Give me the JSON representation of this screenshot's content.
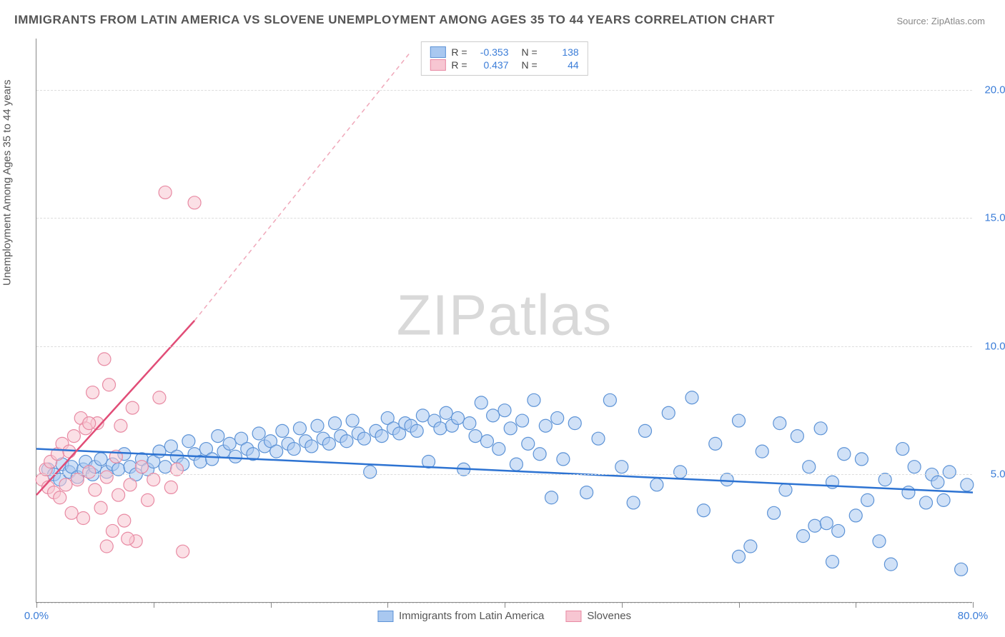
{
  "title": "IMMIGRANTS FROM LATIN AMERICA VS SLOVENE UNEMPLOYMENT AMONG AGES 35 TO 44 YEARS CORRELATION CHART",
  "source": "Source: ZipAtlas.com",
  "y_axis_label": "Unemployment Among Ages 35 to 44 years",
  "watermark_part1": "ZIP",
  "watermark_part2": "atlas",
  "chart": {
    "type": "scatter",
    "xlim": [
      0,
      80
    ],
    "ylim": [
      0,
      22
    ],
    "x_ticks": [
      0,
      10,
      20,
      30,
      40,
      50,
      60,
      70,
      80
    ],
    "x_tick_labels": {
      "0": "0.0%",
      "80": "80.0%"
    },
    "y_ticks": [
      0,
      5,
      10,
      15,
      20
    ],
    "y_tick_labels": {
      "5": "5.0%",
      "10": "10.0%",
      "15": "15.0%",
      "20": "20.0%"
    },
    "grid_lines_y": [
      0,
      5,
      10,
      15,
      20
    ],
    "grid_color": "#dddddd",
    "background": "#ffffff",
    "axis_color": "#888888",
    "label_color": "#3b7dd8",
    "title_color": "#555555",
    "title_fontsize": 17,
    "label_fontsize": 15,
    "marker_radius": 9,
    "marker_opacity": 0.55,
    "marker_stroke_width": 1.2,
    "series": [
      {
        "name": "Immigrants from Latin America",
        "fill": "#a9c8f0",
        "stroke": "#5d93d6",
        "R": "-0.353",
        "N": "138",
        "trend": {
          "x1": 0,
          "y1": 6.0,
          "x2": 80,
          "y2": 4.3,
          "color": "#2d73d2",
          "width": 2.5,
          "dash": "none"
        },
        "points": [
          [
            1.0,
            5.2
          ],
          [
            1.5,
            5.0
          ],
          [
            2.0,
            4.8
          ],
          [
            2.2,
            5.4
          ],
          [
            2.8,
            5.1
          ],
          [
            3.0,
            5.3
          ],
          [
            3.5,
            4.9
          ],
          [
            4.0,
            5.2
          ],
          [
            4.2,
            5.5
          ],
          [
            4.8,
            5.0
          ],
          [
            5.0,
            5.3
          ],
          [
            5.5,
            5.6
          ],
          [
            6.0,
            5.1
          ],
          [
            6.5,
            5.4
          ],
          [
            7.0,
            5.2
          ],
          [
            7.5,
            5.8
          ],
          [
            8.0,
            5.3
          ],
          [
            8.5,
            5.0
          ],
          [
            9.0,
            5.6
          ],
          [
            9.5,
            5.2
          ],
          [
            10.0,
            5.5
          ],
          [
            10.5,
            5.9
          ],
          [
            11.0,
            5.3
          ],
          [
            11.5,
            6.1
          ],
          [
            12.0,
            5.7
          ],
          [
            12.5,
            5.4
          ],
          [
            13.0,
            6.3
          ],
          [
            13.5,
            5.8
          ],
          [
            14.0,
            5.5
          ],
          [
            14.5,
            6.0
          ],
          [
            15.0,
            5.6
          ],
          [
            15.5,
            6.5
          ],
          [
            16.0,
            5.9
          ],
          [
            16.5,
            6.2
          ],
          [
            17.0,
            5.7
          ],
          [
            17.5,
            6.4
          ],
          [
            18.0,
            6.0
          ],
          [
            18.5,
            5.8
          ],
          [
            19.0,
            6.6
          ],
          [
            19.5,
            6.1
          ],
          [
            20.0,
            6.3
          ],
          [
            20.5,
            5.9
          ],
          [
            21.0,
            6.7
          ],
          [
            21.5,
            6.2
          ],
          [
            22.0,
            6.0
          ],
          [
            22.5,
            6.8
          ],
          [
            23.0,
            6.3
          ],
          [
            23.5,
            6.1
          ],
          [
            24.0,
            6.9
          ],
          [
            24.5,
            6.4
          ],
          [
            25.0,
            6.2
          ],
          [
            25.5,
            7.0
          ],
          [
            26.0,
            6.5
          ],
          [
            26.5,
            6.3
          ],
          [
            27.0,
            7.1
          ],
          [
            27.5,
            6.6
          ],
          [
            28.0,
            6.4
          ],
          [
            28.5,
            5.1
          ],
          [
            29.0,
            6.7
          ],
          [
            29.5,
            6.5
          ],
          [
            30.0,
            7.2
          ],
          [
            30.5,
            6.8
          ],
          [
            31.0,
            6.6
          ],
          [
            31.5,
            7.0
          ],
          [
            32.0,
            6.9
          ],
          [
            32.5,
            6.7
          ],
          [
            33.0,
            7.3
          ],
          [
            33.5,
            5.5
          ],
          [
            34.0,
            7.1
          ],
          [
            34.5,
            6.8
          ],
          [
            35.0,
            7.4
          ],
          [
            35.5,
            6.9
          ],
          [
            36.0,
            7.2
          ],
          [
            36.5,
            5.2
          ],
          [
            37.0,
            7.0
          ],
          [
            37.5,
            6.5
          ],
          [
            38.0,
            7.8
          ],
          [
            38.5,
            6.3
          ],
          [
            39.0,
            7.3
          ],
          [
            39.5,
            6.0
          ],
          [
            40.0,
            7.5
          ],
          [
            40.5,
            6.8
          ],
          [
            41.0,
            5.4
          ],
          [
            41.5,
            7.1
          ],
          [
            42.0,
            6.2
          ],
          [
            42.5,
            7.9
          ],
          [
            43.0,
            5.8
          ],
          [
            43.5,
            6.9
          ],
          [
            44.0,
            4.1
          ],
          [
            44.5,
            7.2
          ],
          [
            45.0,
            5.6
          ],
          [
            46.0,
            7.0
          ],
          [
            47.0,
            4.3
          ],
          [
            48.0,
            6.4
          ],
          [
            49.0,
            7.9
          ],
          [
            50.0,
            5.3
          ],
          [
            51.0,
            3.9
          ],
          [
            52.0,
            6.7
          ],
          [
            53.0,
            4.6
          ],
          [
            54.0,
            7.4
          ],
          [
            55.0,
            5.1
          ],
          [
            56.0,
            8.0
          ],
          [
            57.0,
            3.6
          ],
          [
            58.0,
            6.2
          ],
          [
            59.0,
            4.8
          ],
          [
            60.0,
            7.1
          ],
          [
            61.0,
            2.2
          ],
          [
            62.0,
            5.9
          ],
          [
            63.0,
            3.5
          ],
          [
            63.5,
            7.0
          ],
          [
            64.0,
            4.4
          ],
          [
            65.0,
            6.5
          ],
          [
            65.5,
            2.6
          ],
          [
            66.0,
            5.3
          ],
          [
            66.5,
            3.0
          ],
          [
            67.0,
            6.8
          ],
          [
            67.5,
            3.1
          ],
          [
            68.0,
            4.7
          ],
          [
            68.5,
            2.8
          ],
          [
            69.0,
            5.8
          ],
          [
            70.0,
            3.4
          ],
          [
            70.5,
            5.6
          ],
          [
            71.0,
            4.0
          ],
          [
            72.0,
            2.4
          ],
          [
            72.5,
            4.8
          ],
          [
            73.0,
            1.5
          ],
          [
            74.0,
            6.0
          ],
          [
            74.5,
            4.3
          ],
          [
            75.0,
            5.3
          ],
          [
            76.0,
            3.9
          ],
          [
            76.5,
            5.0
          ],
          [
            77.0,
            4.7
          ],
          [
            77.5,
            4.0
          ],
          [
            78.0,
            5.1
          ],
          [
            79.0,
            1.3
          ],
          [
            79.5,
            4.6
          ],
          [
            68.0,
            1.6
          ],
          [
            60.0,
            1.8
          ]
        ]
      },
      {
        "name": "Slovenes",
        "fill": "#f7c6d2",
        "stroke": "#e88aa3",
        "R": "0.437",
        "N": "44",
        "trend": {
          "x1": 0,
          "y1": 4.2,
          "x2": 13.5,
          "y2": 11.0,
          "color": "#e14d77",
          "width": 2.5,
          "dash": "none"
        },
        "trend_dash": {
          "x1": 13.5,
          "y1": 11.0,
          "x2": 32.0,
          "y2": 21.5,
          "color": "#f0a8ba",
          "width": 1.5,
          "dash": "6,5"
        },
        "points": [
          [
            0.5,
            4.8
          ],
          [
            0.8,
            5.2
          ],
          [
            1.0,
            4.5
          ],
          [
            1.2,
            5.5
          ],
          [
            1.5,
            4.3
          ],
          [
            1.8,
            5.8
          ],
          [
            2.0,
            4.1
          ],
          [
            2.2,
            6.2
          ],
          [
            2.5,
            4.6
          ],
          [
            2.8,
            5.9
          ],
          [
            3.0,
            3.5
          ],
          [
            3.2,
            6.5
          ],
          [
            3.5,
            4.8
          ],
          [
            3.8,
            7.2
          ],
          [
            4.0,
            3.3
          ],
          [
            4.2,
            6.8
          ],
          [
            4.5,
            5.1
          ],
          [
            4.8,
            8.2
          ],
          [
            5.0,
            4.4
          ],
          [
            5.2,
            7.0
          ],
          [
            5.5,
            3.7
          ],
          [
            5.8,
            9.5
          ],
          [
            6.0,
            4.9
          ],
          [
            6.2,
            8.5
          ],
          [
            6.5,
            2.8
          ],
          [
            6.8,
            5.7
          ],
          [
            7.0,
            4.2
          ],
          [
            7.2,
            6.9
          ],
          [
            7.5,
            3.2
          ],
          [
            8.0,
            4.6
          ],
          [
            8.2,
            7.6
          ],
          [
            8.5,
            2.4
          ],
          [
            9.0,
            5.3
          ],
          [
            9.5,
            4.0
          ],
          [
            10.0,
            4.8
          ],
          [
            10.5,
            8.0
          ],
          [
            11.0,
            16.0
          ],
          [
            11.5,
            4.5
          ],
          [
            12.0,
            5.2
          ],
          [
            12.5,
            2.0
          ],
          [
            13.5,
            15.6
          ],
          [
            7.8,
            2.5
          ],
          [
            6.0,
            2.2
          ],
          [
            4.5,
            7.0
          ]
        ]
      }
    ]
  },
  "stats_box": {
    "rows": [
      {
        "fill": "#a9c8f0",
        "stroke": "#5d93d6",
        "r_label": "R =",
        "r_val": "-0.353",
        "n_label": "N =",
        "n_val": "138"
      },
      {
        "fill": "#f7c6d2",
        "stroke": "#e88aa3",
        "r_label": "R =",
        "r_val": "0.437",
        "n_label": "N =",
        "n_val": "44"
      }
    ]
  },
  "bottom_legend": [
    {
      "fill": "#a9c8f0",
      "stroke": "#5d93d6",
      "label": "Immigrants from Latin America"
    },
    {
      "fill": "#f7c6d2",
      "stroke": "#e88aa3",
      "label": "Slovenes"
    }
  ]
}
